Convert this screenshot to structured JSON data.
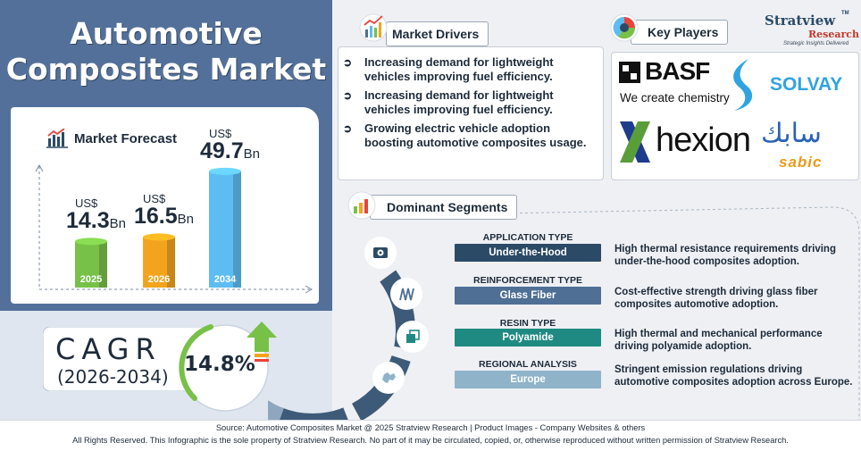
{
  "title": {
    "line1": "Automotive",
    "line2": "Composites Market"
  },
  "forecast": {
    "heading": "Market Forecast",
    "bars": [
      {
        "year": "2025",
        "prefix": "US$",
        "value": "14.3",
        "unit": "Bn",
        "amount": 14.3,
        "color": "#77c148"
      },
      {
        "year": "2026",
        "prefix": "US$",
        "value": "16.5",
        "unit": "Bn",
        "amount": 16.5,
        "color": "#f2a41f"
      },
      {
        "year": "2034",
        "prefix": "US$",
        "value": "49.7",
        "unit": "Bn",
        "amount": 49.7,
        "color": "#5dbdf2"
      }
    ]
  },
  "cagr": {
    "label": "CAGR",
    "period": "(2026-2034)",
    "value": "14.8%"
  },
  "drivers": {
    "heading": "Market Drivers",
    "items": [
      "Increasing demand for lightweight vehicles improving fuel efficiency.",
      "Increasing demand for lightweight vehicles improving fuel efficiency.",
      "Growing electric vehicle adoption boosting automotive composites usage."
    ]
  },
  "players": {
    "heading": "Key Players",
    "basf_name": "BASF",
    "basf_tagline": "We create chemistry",
    "solvay": "SOLVAY",
    "hexion": "hexion",
    "sabic_arabic": "سابك",
    "sabic_latin": "sabic"
  },
  "brand": {
    "name": "Stratview",
    "name2": "Research",
    "trademark": "TM",
    "tagline": "Strategic Insights Delivered"
  },
  "segments": {
    "heading": "Dominant Segments",
    "items": [
      {
        "type": "APPLICATION TYPE",
        "value": "Under-the-Hood",
        "color": "#2b4a66",
        "icon": "engine-icon",
        "description": "High thermal resistance requirements driving under-the-hood composites adoption."
      },
      {
        "type": "REINFORCEMENT TYPE",
        "value": "Glass Fiber",
        "color": "#4f6f95",
        "icon": "fiber-icon",
        "description": "Cost-effective strength driving glass fiber composites automotive adoption."
      },
      {
        "type": "RESIN TYPE",
        "value": "Polyamide",
        "color": "#1f8a82",
        "icon": "resin-icon",
        "description": "High thermal and mechanical performance driving polyamide adoption."
      },
      {
        "type": "REGIONAL ANALYSIS",
        "value": "Europe",
        "color": "#8fb4c9",
        "icon": "europe-map-icon",
        "description": "Stringent emission regulations driving automotive composites adoption across Europe."
      }
    ]
  },
  "footer": {
    "source": "Source: Automotive Composites Market @ 2025 Stratview Research | Product Images  - Company Websites & others",
    "rights": "All Rights Reserved. This Infographic is the sole property of Stratview Research. No part of it may be circulated, copied, or, otherwise reproduced without written permission of Stratview Research."
  }
}
